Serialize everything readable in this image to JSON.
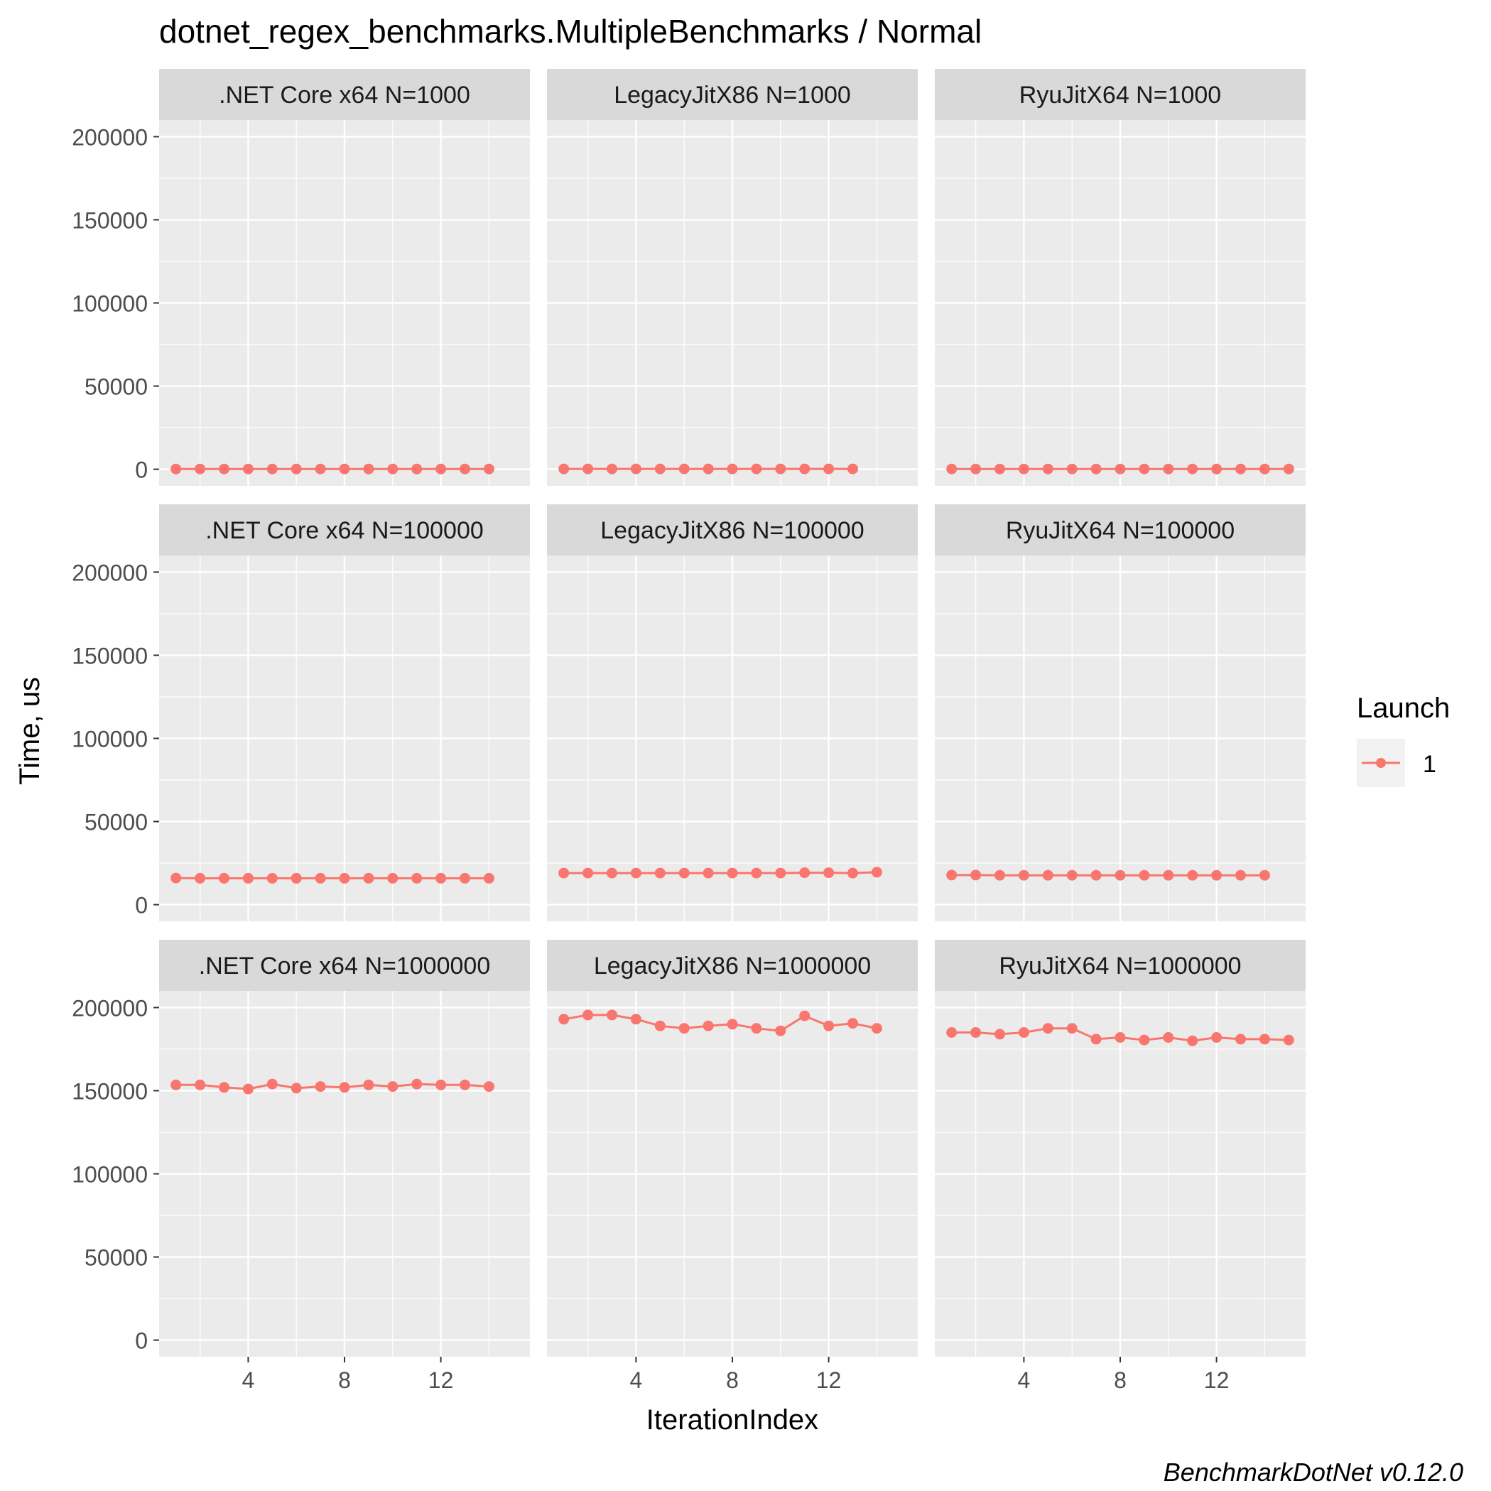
{
  "chart_data": {
    "type": "line",
    "title": "dotnet_regex_benchmarks.MultipleBenchmarks / Normal",
    "xlabel": "IterationIndex",
    "ylabel": "Time, us",
    "caption": "BenchmarkDotNet v0.12.0",
    "xlim": [
      0.3,
      15.7
    ],
    "ylim": [
      -10000,
      210000
    ],
    "x_ticks": [
      4,
      8,
      12
    ],
    "y_ticks": [
      0,
      50000,
      100000,
      150000,
      200000
    ],
    "y_tick_labels": [
      "0",
      "50000",
      "100000",
      "150000",
      "200000"
    ],
    "grid": true,
    "legend": {
      "title": "Launch",
      "entries": [
        "1"
      ],
      "position": "right"
    },
    "colors": {
      "series": "#F8766D",
      "panel_bg": "#EBEBEB",
      "strip_bg": "#D9D9D9",
      "grid": "#FFFFFF",
      "legend_key_bg": "#F2F2F2"
    },
    "panels": [
      {
        "title": ".NET Core x64 N=1000",
        "x": [
          1,
          2,
          3,
          4,
          5,
          6,
          7,
          8,
          9,
          10,
          11,
          12,
          13,
          14
        ],
        "values": [
          150,
          150,
          150,
          150,
          150,
          150,
          150,
          150,
          150,
          150,
          150,
          150,
          150,
          150
        ]
      },
      {
        "title": "LegacyJitX86 N=1000",
        "x": [
          1,
          2,
          3,
          4,
          5,
          6,
          7,
          8,
          9,
          10,
          11,
          12,
          13
        ],
        "values": [
          200,
          200,
          200,
          200,
          200,
          200,
          200,
          200,
          200,
          200,
          200,
          200,
          200
        ]
      },
      {
        "title": "RyuJitX64 N=1000",
        "x": [
          1,
          2,
          3,
          4,
          5,
          6,
          7,
          8,
          9,
          10,
          11,
          12,
          13,
          14,
          15
        ],
        "values": [
          180,
          180,
          180,
          180,
          180,
          180,
          180,
          180,
          180,
          180,
          180,
          180,
          180,
          180,
          180
        ]
      },
      {
        "title": ".NET Core x64 N=100000",
        "x": [
          1,
          2,
          3,
          4,
          5,
          6,
          7,
          8,
          9,
          10,
          11,
          12,
          13,
          14
        ],
        "values": [
          16000,
          15900,
          15900,
          15900,
          15900,
          15900,
          15900,
          15900,
          15900,
          15900,
          15900,
          15900,
          15900,
          15900
        ]
      },
      {
        "title": "LegacyJitX86 N=100000",
        "x": [
          1,
          2,
          3,
          4,
          5,
          6,
          7,
          8,
          9,
          10,
          11,
          12,
          13,
          14
        ],
        "values": [
          19000,
          19000,
          19000,
          19000,
          19000,
          19000,
          19000,
          19000,
          19000,
          19000,
          19200,
          19200,
          19000,
          19500
        ]
      },
      {
        "title": "RyuJitX64 N=100000",
        "x": [
          1,
          2,
          3,
          4,
          5,
          6,
          7,
          8,
          9,
          10,
          11,
          12,
          13,
          14
        ],
        "values": [
          17800,
          17800,
          17700,
          17700,
          17700,
          17700,
          17700,
          17700,
          17700,
          17700,
          17700,
          17700,
          17700,
          17700
        ]
      },
      {
        "title": ".NET Core x64 N=1000000",
        "x": [
          1,
          2,
          3,
          4,
          5,
          6,
          7,
          8,
          9,
          10,
          11,
          12,
          13,
          14
        ],
        "values": [
          153500,
          153500,
          152000,
          151000,
          154000,
          151500,
          152500,
          152000,
          153500,
          152500,
          154000,
          153500,
          153500,
          152500
        ]
      },
      {
        "title": "LegacyJitX86 N=1000000",
        "x": [
          1,
          2,
          3,
          4,
          5,
          6,
          7,
          8,
          9,
          10,
          11,
          12,
          13,
          14
        ],
        "values": [
          193000,
          195500,
          195500,
          193000,
          189000,
          187500,
          189000,
          190000,
          187500,
          186000,
          195000,
          189000,
          190500,
          187500
        ]
      },
      {
        "title": "RyuJitX64 N=1000000",
        "x": [
          1,
          2,
          3,
          4,
          5,
          6,
          7,
          8,
          9,
          10,
          11,
          12,
          13,
          14,
          15
        ],
        "values": [
          185000,
          185000,
          184000,
          185000,
          187500,
          187500,
          181000,
          182000,
          180500,
          182000,
          180000,
          182000,
          181000,
          181000,
          180500
        ]
      }
    ]
  }
}
